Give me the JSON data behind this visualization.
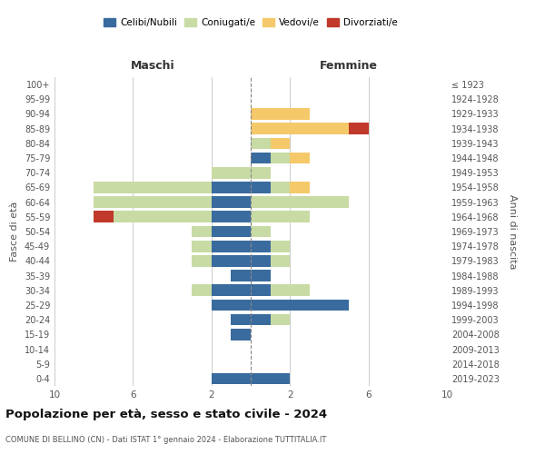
{
  "age_groups": [
    "0-4",
    "5-9",
    "10-14",
    "15-19",
    "20-24",
    "25-29",
    "30-34",
    "35-39",
    "40-44",
    "45-49",
    "50-54",
    "55-59",
    "60-64",
    "65-69",
    "70-74",
    "75-79",
    "80-84",
    "85-89",
    "90-94",
    "95-99",
    "100+"
  ],
  "birth_years": [
    "2019-2023",
    "2014-2018",
    "2009-2013",
    "2004-2008",
    "1999-2003",
    "1994-1998",
    "1989-1993",
    "1984-1988",
    "1979-1983",
    "1974-1978",
    "1969-1973",
    "1964-1968",
    "1959-1963",
    "1954-1958",
    "1949-1953",
    "1944-1948",
    "1939-1943",
    "1934-1938",
    "1929-1933",
    "1924-1928",
    "≤ 1923"
  ],
  "colors": {
    "celibi": "#3a6b9e",
    "coniugati": "#c8dba4",
    "vedovi": "#f5c96a",
    "divorziati": "#c0392b"
  },
  "maschi": {
    "celibi": [
      2,
      0,
      0,
      1,
      1,
      2,
      2,
      1,
      2,
      2,
      2,
      2,
      2,
      2,
      0,
      0,
      0,
      0,
      0,
      0,
      0
    ],
    "coniugati": [
      0,
      0,
      0,
      0,
      0,
      0,
      1,
      0,
      1,
      1,
      1,
      5,
      6,
      6,
      2,
      0,
      0,
      0,
      0,
      0,
      0
    ],
    "vedovi": [
      0,
      0,
      0,
      0,
      0,
      0,
      0,
      0,
      0,
      0,
      0,
      0,
      0,
      0,
      0,
      0,
      0,
      0,
      0,
      0,
      0
    ],
    "divorziati": [
      0,
      0,
      0,
      0,
      0,
      0,
      0,
      0,
      0,
      0,
      0,
      1,
      0,
      0,
      0,
      0,
      0,
      0,
      0,
      0,
      0
    ]
  },
  "femmine": {
    "celibi": [
      2,
      0,
      0,
      0,
      1,
      5,
      1,
      1,
      1,
      1,
      0,
      0,
      0,
      1,
      0,
      1,
      0,
      0,
      0,
      0,
      0
    ],
    "coniugati": [
      0,
      0,
      0,
      0,
      1,
      0,
      2,
      0,
      1,
      1,
      1,
      3,
      5,
      1,
      1,
      1,
      1,
      0,
      0,
      0,
      0
    ],
    "vedovi": [
      0,
      0,
      0,
      0,
      0,
      0,
      0,
      0,
      0,
      0,
      0,
      0,
      0,
      1,
      0,
      1,
      1,
      5,
      3,
      0,
      0
    ],
    "divorziati": [
      0,
      0,
      0,
      0,
      0,
      0,
      0,
      0,
      0,
      0,
      0,
      0,
      0,
      0,
      0,
      0,
      0,
      1,
      0,
      0,
      0
    ]
  },
  "title": "Popolazione per età, sesso e stato civile - 2024",
  "subtitle": "COMUNE DI BELLINO (CN) - Dati ISTAT 1° gennaio 2024 - Elaborazione TUTTITALIA.IT",
  "xlabel_left": "Maschi",
  "xlabel_right": "Femmine",
  "ylabel_left": "Fasce di età",
  "ylabel_right": "Anni di nascita",
  "xlim": 10,
  "xticks": [
    -10,
    -6,
    -2,
    2,
    6,
    10
  ],
  "legend_labels": [
    "Celibi/Nubili",
    "Coniugati/e",
    "Vedovi/e",
    "Divorziati/e"
  ],
  "bg_color": "#ffffff",
  "grid_color": "#cccccc"
}
